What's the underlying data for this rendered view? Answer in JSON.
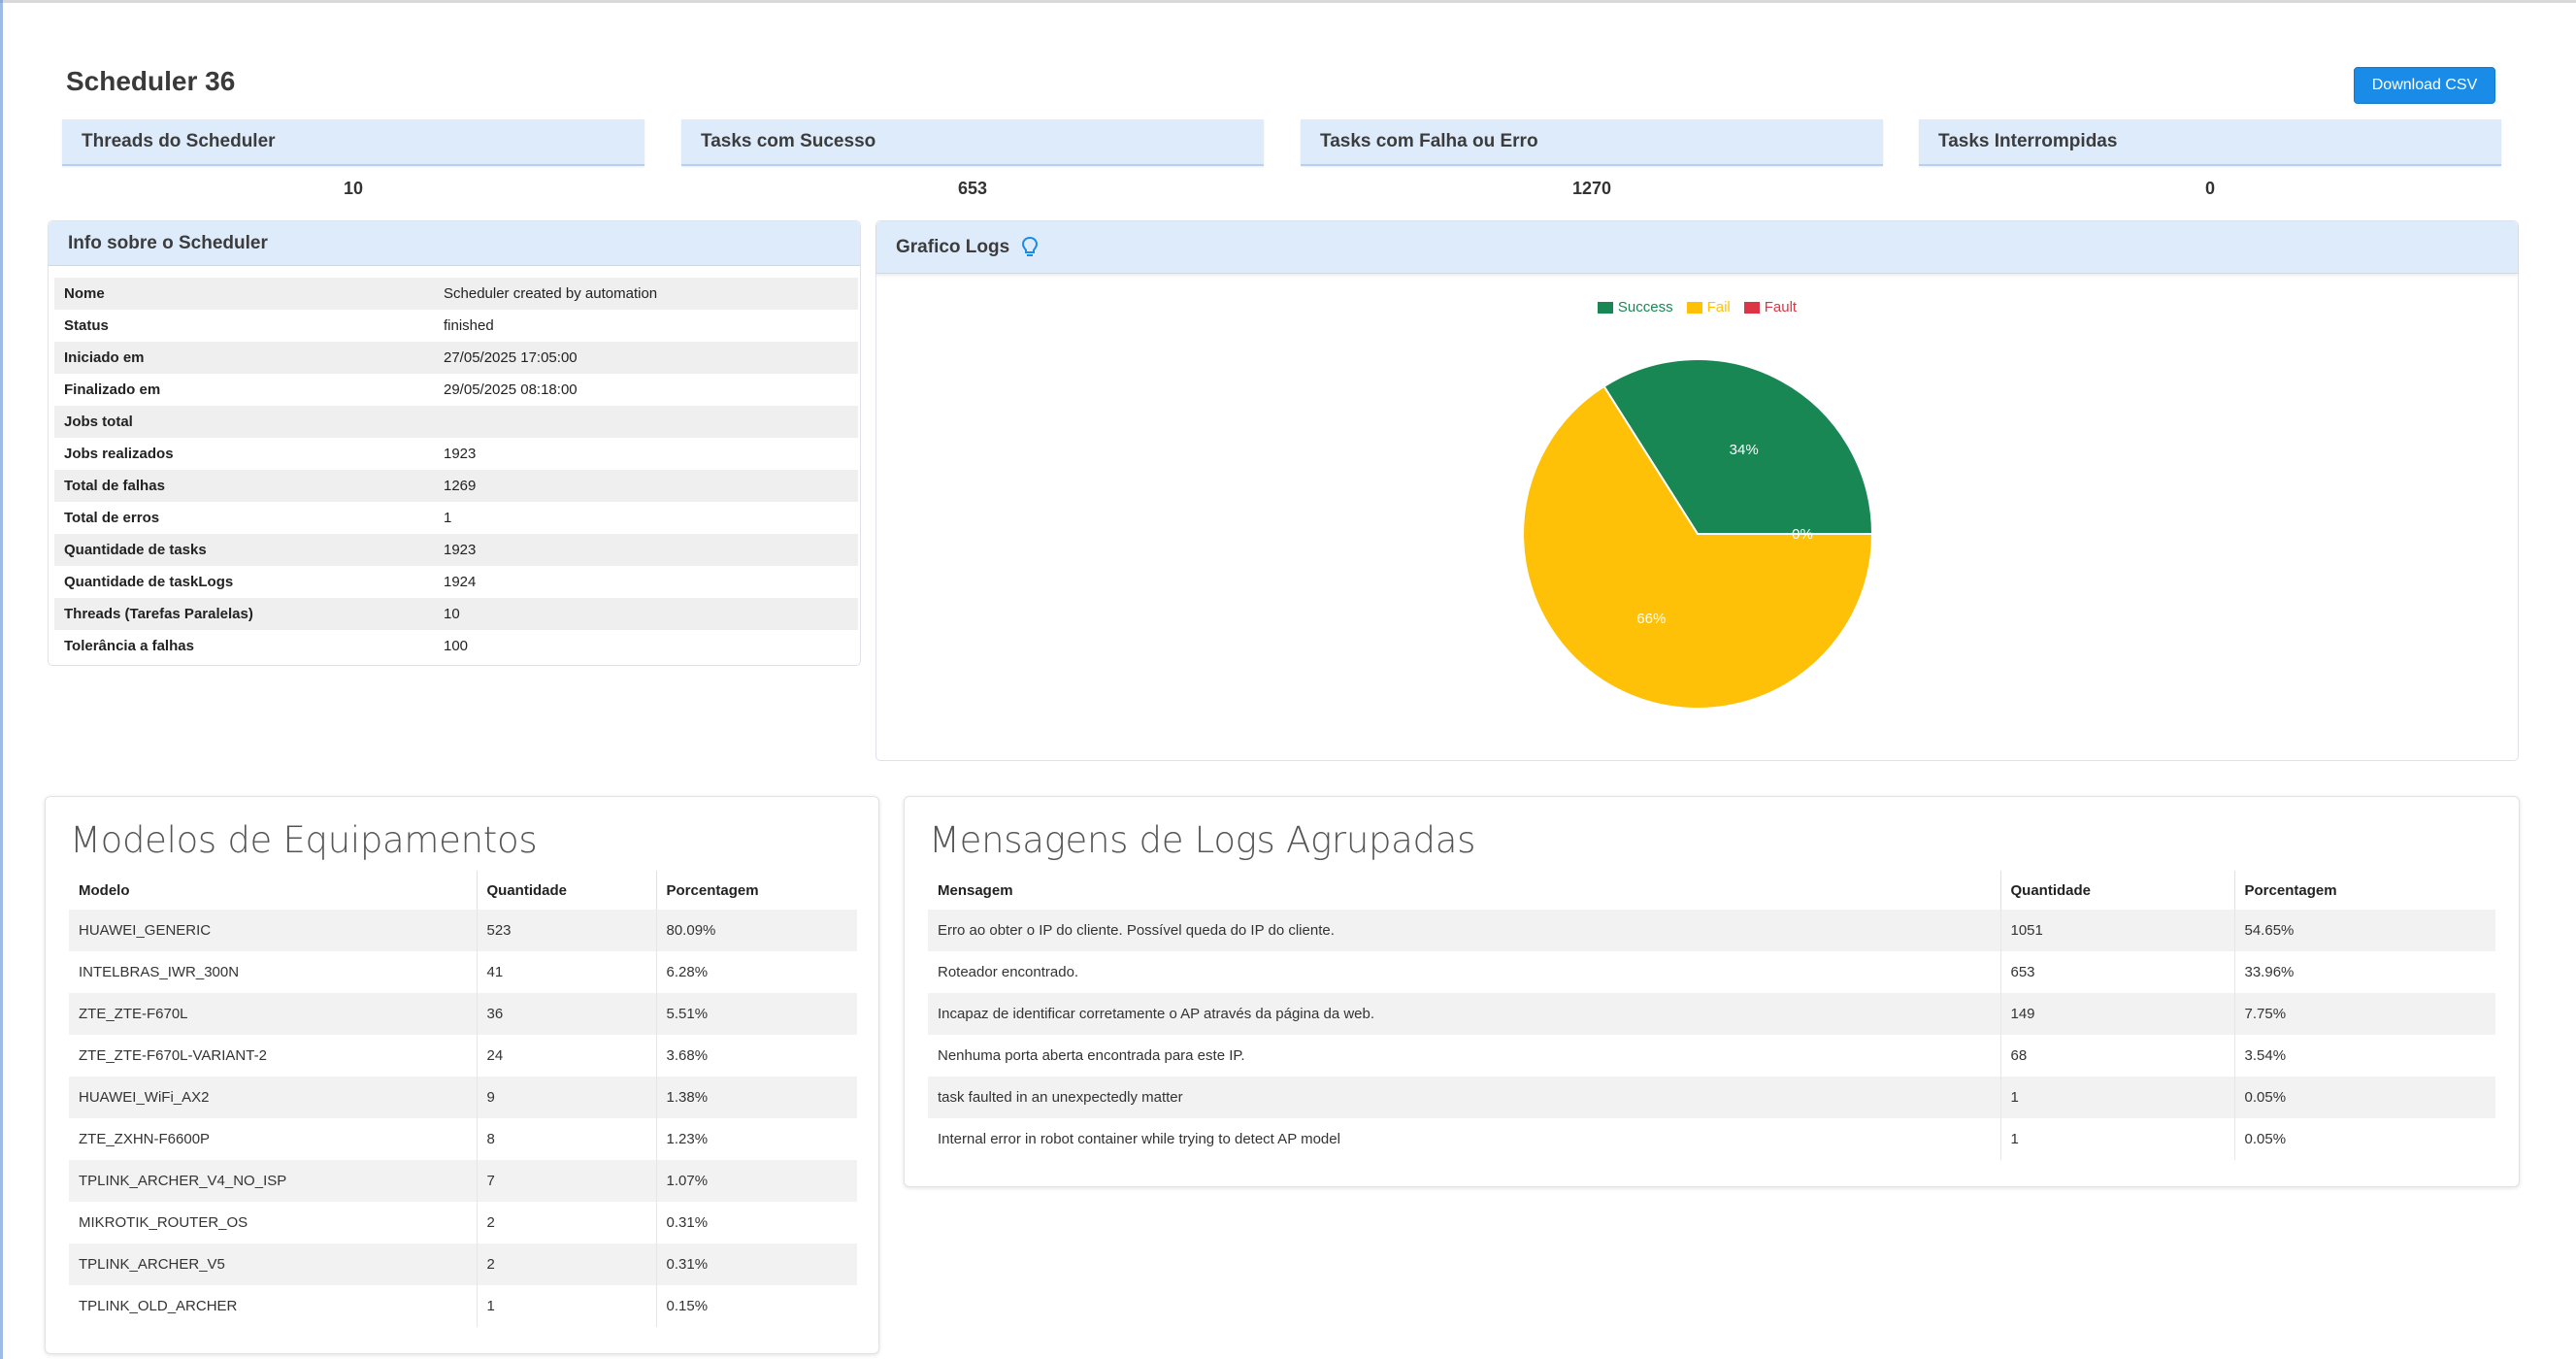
{
  "header": {
    "title": "Scheduler 36",
    "download_label": "Download CSV"
  },
  "stats": [
    {
      "label": "Threads do Scheduler",
      "value": "10"
    },
    {
      "label": "Tasks com Sucesso",
      "value": "653"
    },
    {
      "label": "Tasks com Falha ou Erro",
      "value": "1270"
    },
    {
      "label": "Tasks Interrompidas",
      "value": "0"
    }
  ],
  "info": {
    "title": "Info sobre o Scheduler",
    "rows": [
      {
        "key": "Nome",
        "value": "Scheduler created by automation"
      },
      {
        "key": "Status",
        "value": "finished"
      },
      {
        "key": "Iniciado em",
        "value": "27/05/2025 17:05:00"
      },
      {
        "key": "Finalizado em",
        "value": "29/05/2025 08:18:00"
      },
      {
        "key": "Jobs total",
        "value": ""
      },
      {
        "key": "Jobs realizados",
        "value": "1923"
      },
      {
        "key": "Total de falhas",
        "value": "1269"
      },
      {
        "key": "Total de erros",
        "value": "1"
      },
      {
        "key": "Quantidade de tasks",
        "value": "1923"
      },
      {
        "key": "Quantidade de taskLogs",
        "value": "1924"
      },
      {
        "key": "Threads (Tarefas Paralelas)",
        "value": "10"
      },
      {
        "key": "Tolerância a falhas",
        "value": "100"
      }
    ]
  },
  "chart_panel": {
    "title": "Grafico Logs",
    "icon": "lightbulb-icon"
  },
  "chart_data": {
    "type": "pie",
    "title": "",
    "legend_position": "top",
    "series": [
      {
        "name": "Success",
        "value": 34,
        "label": "34%",
        "color": "#198754"
      },
      {
        "name": "Fail",
        "value": 66,
        "label": "66%",
        "color": "#ffc107"
      },
      {
        "name": "Fault",
        "value": 0,
        "label": "0%",
        "color": "#dc3545"
      }
    ]
  },
  "models": {
    "title": "Modelos de Equipamentos",
    "columns": [
      "Modelo",
      "Quantidade",
      "Porcentagem"
    ],
    "rows": [
      [
        "HUAWEI_GENERIC",
        "523",
        "80.09%"
      ],
      [
        "INTELBRAS_IWR_300N",
        "41",
        "6.28%"
      ],
      [
        "ZTE_ZTE-F670L",
        "36",
        "5.51%"
      ],
      [
        "ZTE_ZTE-F670L-VARIANT-2",
        "24",
        "3.68%"
      ],
      [
        "HUAWEI_WiFi_AX2",
        "9",
        "1.38%"
      ],
      [
        "ZTE_ZXHN-F6600P",
        "8",
        "1.23%"
      ],
      [
        "TPLINK_ARCHER_V4_NO_ISP",
        "7",
        "1.07%"
      ],
      [
        "MIKROTIK_ROUTER_OS",
        "2",
        "0.31%"
      ],
      [
        "TPLINK_ARCHER_V5",
        "2",
        "0.31%"
      ],
      [
        "TPLINK_OLD_ARCHER",
        "1",
        "0.15%"
      ]
    ]
  },
  "messages": {
    "title": "Mensagens de Logs Agrupadas",
    "columns": [
      "Mensagem",
      "Quantidade",
      "Porcentagem"
    ],
    "rows": [
      [
        "Erro ao obter o IP do cliente. Possível queda do IP do cliente.",
        "1051",
        "54.65%"
      ],
      [
        "Roteador encontrado.",
        "653",
        "33.96%"
      ],
      [
        "Incapaz de identificar corretamente o AP através da página da web.",
        "149",
        "7.75%"
      ],
      [
        "Nenhuma porta aberta encontrada para este IP.",
        "68",
        "3.54%"
      ],
      [
        "task faulted in an unexpectedly matter",
        "1",
        "0.05%"
      ],
      [
        "Internal error in robot container while trying to detect AP model",
        "1",
        "0.05%"
      ]
    ]
  }
}
